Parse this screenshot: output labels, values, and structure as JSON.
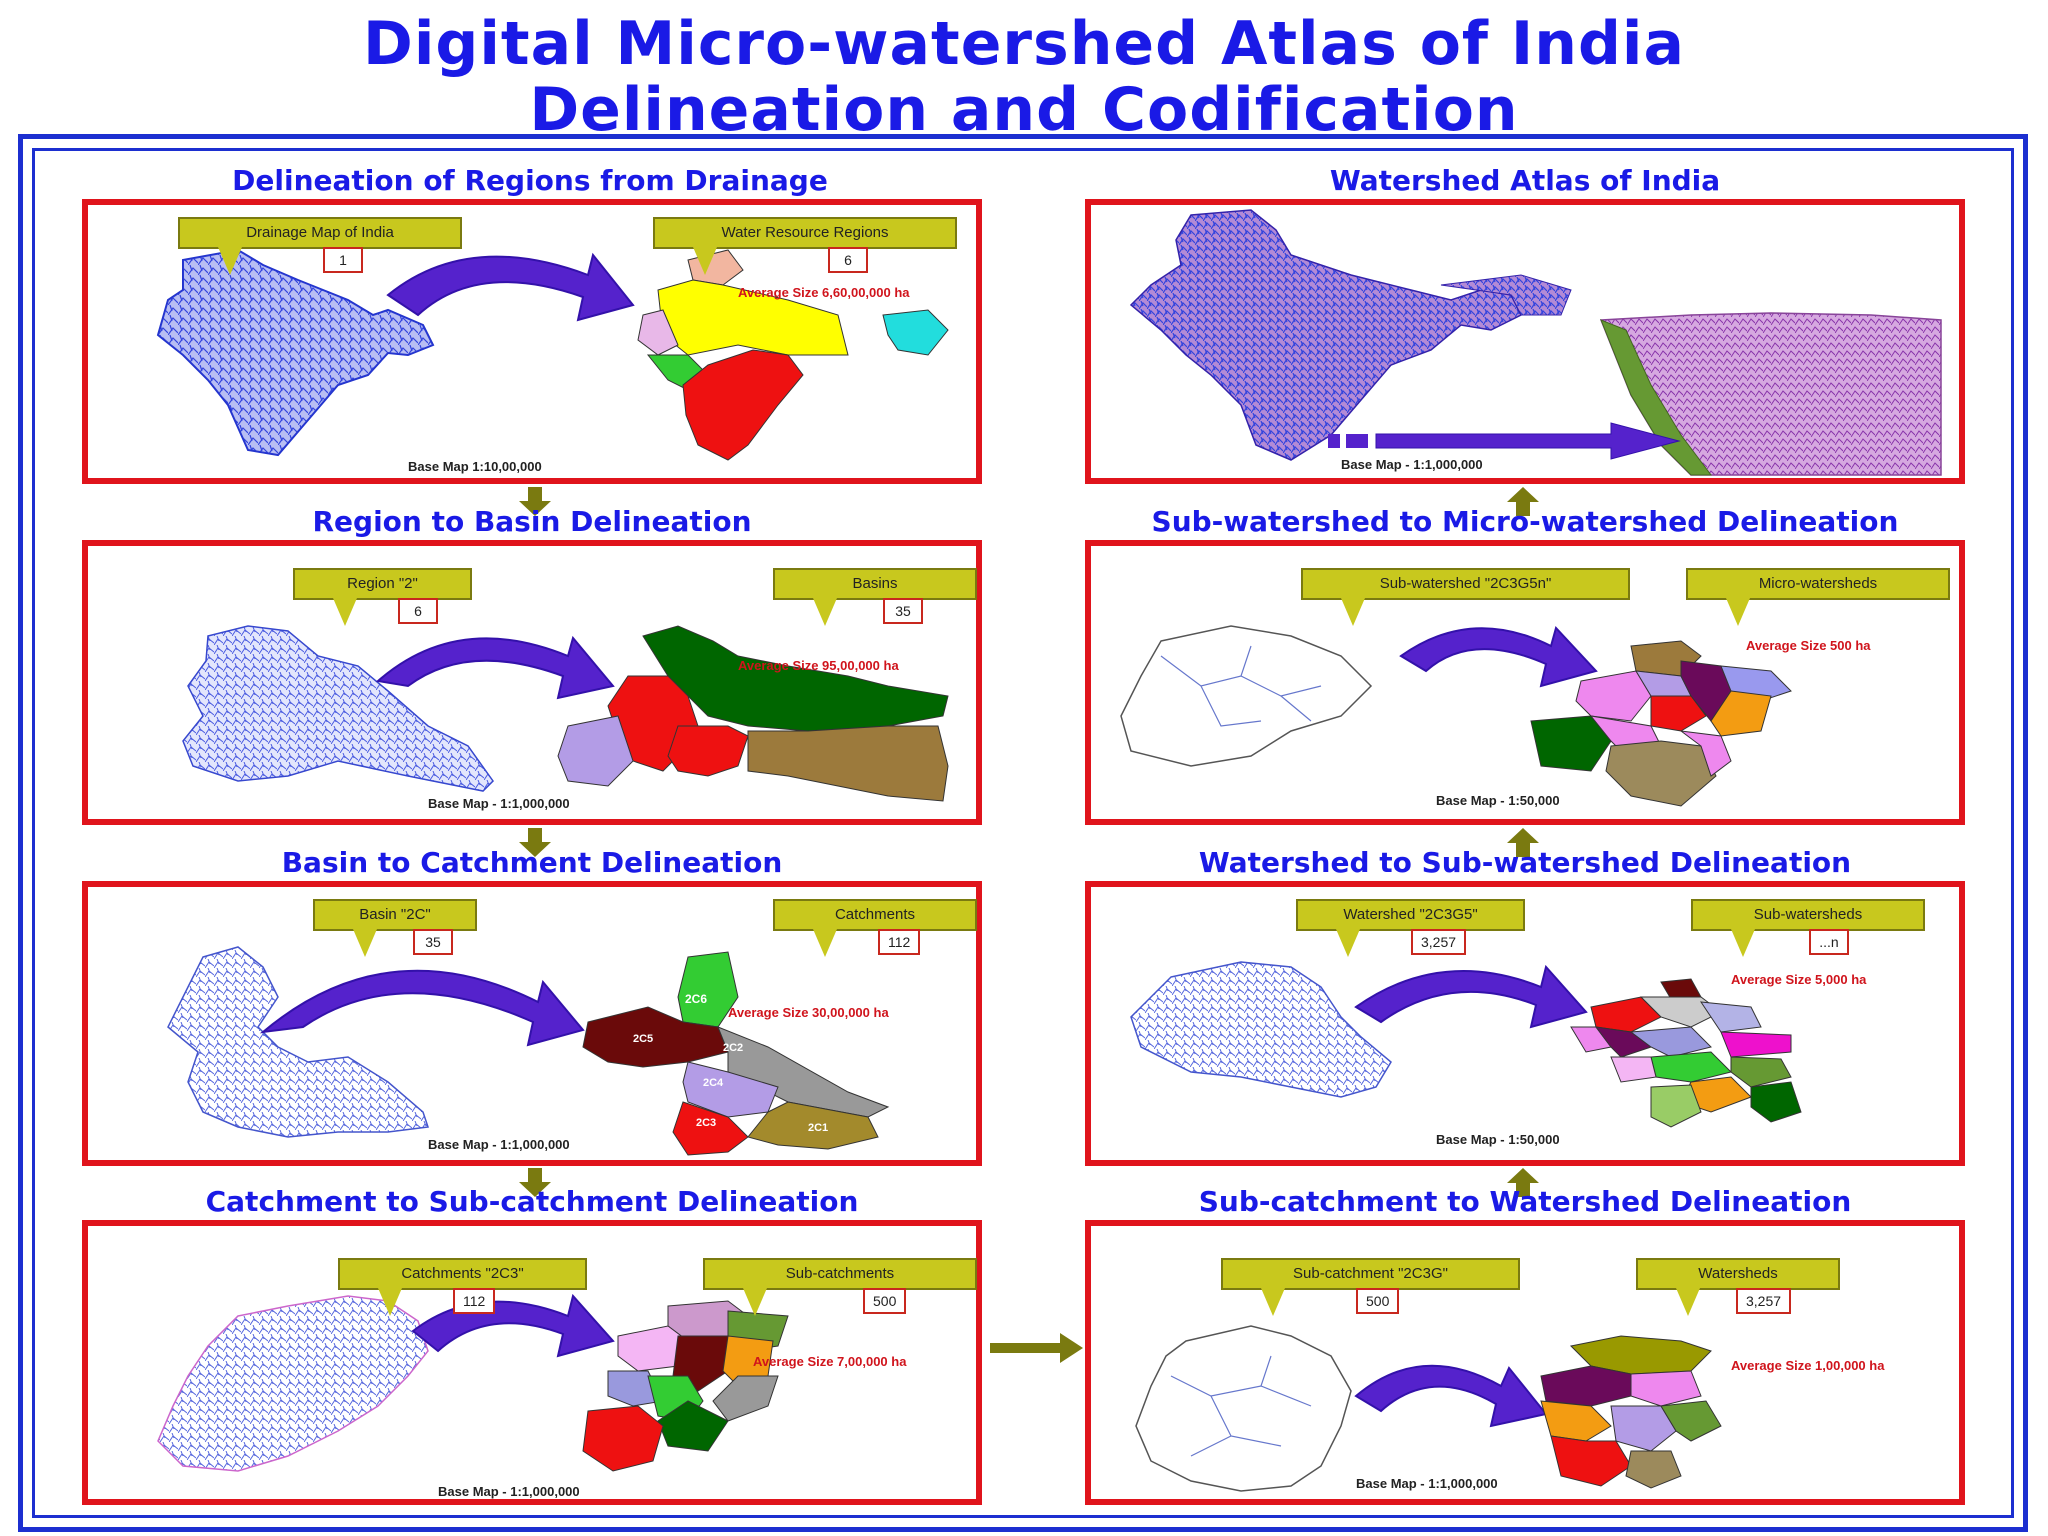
{
  "title": {
    "line1": "Digital Micro-watershed Atlas of India",
    "line2": "Delineation and Codification"
  },
  "panels": {
    "p1": {
      "title": "Delineation of Regions from Drainage",
      "callout_left": "Drainage Map of India",
      "count_left": "1",
      "callout_right": "Water Resource Regions",
      "count_right": "6",
      "avg": "Average Size 6,60,00,000 ha",
      "scale": "Base Map 1:10,00,000"
    },
    "p2": {
      "title": "Region to  Basin Delineation",
      "callout_left": "Region \"2\"",
      "count_left": "6",
      "callout_right": "Basins",
      "count_right": "35",
      "avg": "Average Size 95,00,000 ha",
      "scale": "Base Map - 1:1,000,000"
    },
    "p3": {
      "title": "Basin to Catchment Delineation",
      "callout_left": "Basin \"2C\"",
      "count_left": "35",
      "callout_right": "Catchments",
      "count_right": "112",
      "avg": "Average Size 30,00,000 ha",
      "scale": "Base Map - 1:1,000,000"
    },
    "p4": {
      "title": "Catchment to  Sub-catchment Delineation",
      "callout_left": "Catchments \"2C3\"",
      "count_left": "112",
      "callout_right": "Sub-catchments",
      "count_right": "500",
      "avg": "Average Size 7,00,000 ha",
      "scale": "Base Map - 1:1,000,000"
    },
    "p5": {
      "title": "Watershed Atlas of India",
      "scale": "Base Map - 1:1,000,000"
    },
    "p6": {
      "title": "Sub-watershed to Micro-watershed Delineation",
      "callout_left": "Sub-watershed \"2C3G5n\"",
      "callout_right": "Micro-watersheds",
      "avg": "Average Size 500 ha",
      "scale": "Base Map - 1:50,000"
    },
    "p7": {
      "title": "Watershed to Sub-watershed Delineation",
      "callout_left": "Watershed \"2C3G5\"",
      "count_left": "3,257",
      "callout_right": "Sub-watersheds",
      "count_right": "...n",
      "avg": "Average Size 5,000 ha",
      "scale": "Base Map - 1:50,000"
    },
    "p8": {
      "title": "Sub-catchment to Watershed Delineation",
      "callout_left": "Sub-catchment \"2C3G\"",
      "count_left": "500",
      "callout_right": "Watersheds",
      "count_right": "3,257",
      "avg": "Average Size 1,00,000 ha",
      "scale": "Base Map - 1:1,000,000"
    }
  },
  "region_labels": {
    "p3": [
      "2C6",
      "2C5",
      "2C2",
      "2C4",
      "2C3",
      "2C1"
    ]
  },
  "colors": {
    "title_blue": "#1a1ae6",
    "frame_blue": "#1c2fd0",
    "panel_red": "#e0141c",
    "callout_olive": "#c8c81e",
    "drainage_blue": "#3344dd",
    "curved_arrow": "#5522cc",
    "flow_arrow": "#7a7a10"
  }
}
